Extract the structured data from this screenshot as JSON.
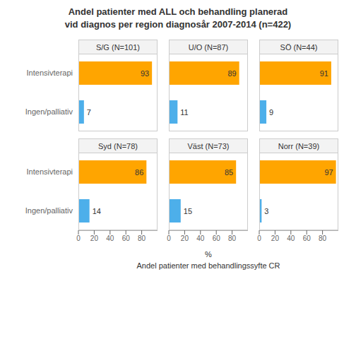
{
  "title": "Andel patienter med ALL och behandling planerad\nvid diagnos per region diagnosår 2007-2014 (n=422)",
  "xlabel": "%\nAndel patienter med behandlingssyfte CR",
  "chart_data": [
    {
      "type": "bar",
      "orientation": "horizontal",
      "title": "S/G (N=101)",
      "categories": [
        "Intensivterapi",
        "Ingen/palliativ"
      ],
      "values": [
        93,
        7
      ],
      "colors": [
        "#FFA500",
        "#4DAFEA"
      ],
      "xlim": [
        0,
        100
      ],
      "data_labels": true,
      "tick_labels": "y"
    },
    {
      "type": "bar",
      "orientation": "horizontal",
      "title": "U/O (N=87)",
      "categories": [
        "Intensivterapi",
        "Ingen/palliativ"
      ],
      "values": [
        89,
        11
      ],
      "colors": [
        "#FFA500",
        "#4DAFEA"
      ],
      "xlim": [
        0,
        100
      ],
      "data_labels": true,
      "tick_labels": false
    },
    {
      "type": "bar",
      "orientation": "horizontal",
      "title": "SÖ (N=44)",
      "categories": [
        "Intensivterapi",
        "Ingen/palliativ"
      ],
      "values": [
        91,
        9
      ],
      "colors": [
        "#FFA500",
        "#4DAFEA"
      ],
      "xlim": [
        0,
        100
      ],
      "data_labels": true,
      "tick_labels": false
    },
    {
      "type": "bar",
      "orientation": "horizontal",
      "title": "Syd (N=78)",
      "categories": [
        "Intensivterapi",
        "Ingen/palliativ"
      ],
      "values": [
        86,
        14
      ],
      "colors": [
        "#FFA500",
        "#4DAFEA"
      ],
      "xlim": [
        0,
        100
      ],
      "xticks": [
        0,
        20,
        40,
        60,
        80
      ],
      "data_labels": true
    },
    {
      "type": "bar",
      "orientation": "horizontal",
      "title": "Väst (N=73)",
      "categories": [
        "Intensivterapi",
        "Ingen/palliativ"
      ],
      "values": [
        85,
        15
      ],
      "colors": [
        "#FFA500",
        "#4DAFEA"
      ],
      "xlim": [
        0,
        100
      ],
      "xticks": [
        0,
        20,
        40,
        60,
        80
      ],
      "data_labels": true,
      "tick_labels": "x"
    },
    {
      "type": "bar",
      "orientation": "horizontal",
      "title": "Norr (N=39)",
      "categories": [
        "Intensivterapi",
        "Ingen/palliativ"
      ],
      "values": [
        97,
        3
      ],
      "colors": [
        "#FFA500",
        "#4DAFEA"
      ],
      "xlim": [
        0,
        100
      ],
      "xticks": [
        0,
        20,
        40,
        60,
        80
      ],
      "data_labels": true,
      "tick_labels": "x"
    }
  ]
}
